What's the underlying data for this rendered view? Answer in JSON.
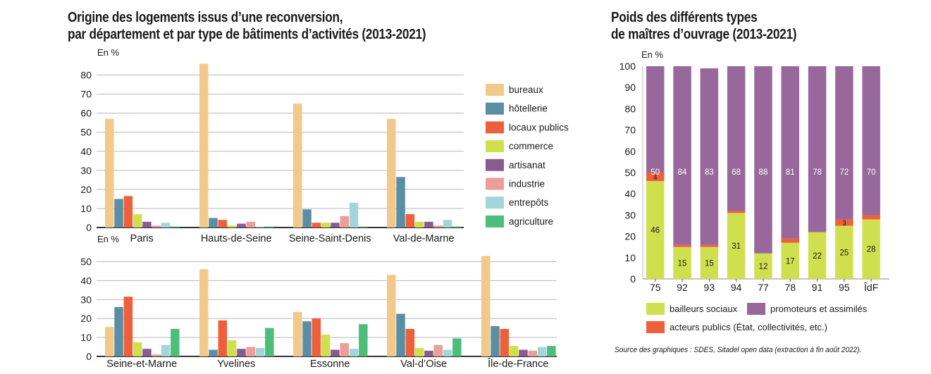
{
  "left_title": [
    "Origine des logements issus d’une reconversion,",
    "par département et par type de bâtiments d’activités (2013-2021)"
  ],
  "right_title": [
    "Poids des différents types",
    "de maîtres d’ouvrage (2013-2021)"
  ],
  "source": "Source des graphiques : SDES, Sitadel open data (extraction à fin août 2022).",
  "colors": {
    "bureaux": "#f2c98a",
    "hotellerie": "#5a8fa3",
    "locaux_publics": "#ee5f3b",
    "commerce": "#cfe04f",
    "artisanat": "#8a5b8f",
    "industrie": "#eb9e9a",
    "entrepots": "#a3d6d8",
    "agriculture": "#4dbd7a",
    "bailleurs": "#cfe04f",
    "acteurs": "#ee5f3b",
    "promoteurs": "#98689c"
  },
  "chart_data": [
    {
      "type": "bar",
      "title": "Origine des logements issus d’une reconversion, par département et par type de bâtiments d’activités (2013-2021)",
      "ylabel": "En %",
      "ylim": [
        0,
        85
      ],
      "yticks": [
        "0",
        "10",
        "20",
        "30",
        "40",
        "50",
        "60",
        "70",
        "80"
      ],
      "categories": [
        "Paris",
        "Hauts-de-Seine",
        "Seine-Saint-Denis",
        "Val-de-Marne"
      ],
      "legend_position": "right",
      "series": [
        {
          "name": "bureaux",
          "values": [
            57,
            86,
            65,
            57
          ]
        },
        {
          "name": "hôtellerie",
          "values": [
            15,
            5,
            9.5,
            26.5
          ]
        },
        {
          "name": "locaux publics",
          "values": [
            16.5,
            4,
            2.5,
            7
          ]
        },
        {
          "name": "commerce",
          "values": [
            7,
            1,
            2.5,
            3
          ]
        },
        {
          "name": "artisanat",
          "values": [
            3,
            2,
            2.5,
            3
          ]
        },
        {
          "name": "industrie",
          "values": [
            1,
            3,
            6,
            1
          ]
        },
        {
          "name": "entrepôts",
          "values": [
            2.5,
            0.5,
            13,
            4
          ]
        },
        {
          "name": "agriculture",
          "values": [
            0.5,
            0.5,
            0.5,
            0.5
          ]
        }
      ]
    },
    {
      "type": "bar",
      "ylabel": "En %",
      "ylim": [
        0,
        55
      ],
      "yticks": [
        "0",
        "10",
        "20",
        "30",
        "40",
        "50"
      ],
      "categories": [
        "Seine-et-Marne",
        "Yvelines",
        "Essonne",
        "Val-d’Oise",
        "Île-de-France"
      ],
      "series": [
        {
          "name": "bureaux",
          "values": [
            15.5,
            46,
            23.5,
            43,
            53
          ]
        },
        {
          "name": "hôtellerie",
          "values": [
            26,
            3.5,
            18.5,
            22.5,
            16
          ]
        },
        {
          "name": "locaux publics",
          "values": [
            31.5,
            19,
            20,
            14.5,
            14.5
          ]
        },
        {
          "name": "commerce",
          "values": [
            7.5,
            8.5,
            11.5,
            4.5,
            5.5
          ]
        },
        {
          "name": "artisanat",
          "values": [
            4,
            4,
            3.5,
            3,
            3.5
          ]
        },
        {
          "name": "industrie",
          "values": [
            1,
            5,
            7,
            6,
            3
          ]
        },
        {
          "name": "entrepôts",
          "values": [
            6,
            4.5,
            4,
            3.5,
            5
          ]
        },
        {
          "name": "agriculture",
          "values": [
            14.5,
            15,
            17,
            9.5,
            5.5
          ]
        }
      ]
    },
    {
      "type": "bar",
      "stacked": true,
      "title": "Poids des différents types de maîtres d’ouvrage (2013-2021)",
      "ylabel": "En %",
      "ylim": [
        0,
        100
      ],
      "yticks": [
        "0",
        "10",
        "20",
        "30",
        "40",
        "50",
        "60",
        "70",
        "80",
        "90",
        "100"
      ],
      "categories": [
        "75",
        "92",
        "93",
        "94",
        "77",
        "78",
        "91",
        "95",
        "ÎdF"
      ],
      "legend_position": "bottom",
      "series": [
        {
          "name": "bailleurs sociaux",
          "values": [
            46,
            15,
            15,
            31,
            12,
            17,
            22,
            25,
            28
          ],
          "labels": [
            "46",
            "15",
            "15",
            "31",
            "12",
            "17",
            "22",
            "25",
            "28"
          ]
        },
        {
          "name": "acteurs publics (État, collectivités, etc.)",
          "values": [
            4,
            1,
            1,
            1,
            0,
            2,
            0,
            3,
            2
          ],
          "labels": [
            "4",
            "",
            "",
            "",
            "",
            "",
            "",
            "3",
            ""
          ]
        },
        {
          "name": "promoteurs et assimilés",
          "values": [
            50,
            84,
            83,
            68,
            88,
            81,
            78,
            72,
            70
          ],
          "labels": [
            "50",
            "84",
            "83",
            "68",
            "88",
            "81",
            "78",
            "72",
            "70"
          ]
        }
      ],
      "legend": [
        "bailleurs sociaux",
        "promoteurs et assimilés",
        "acteurs publics (État, collectivités, etc.)"
      ]
    }
  ]
}
